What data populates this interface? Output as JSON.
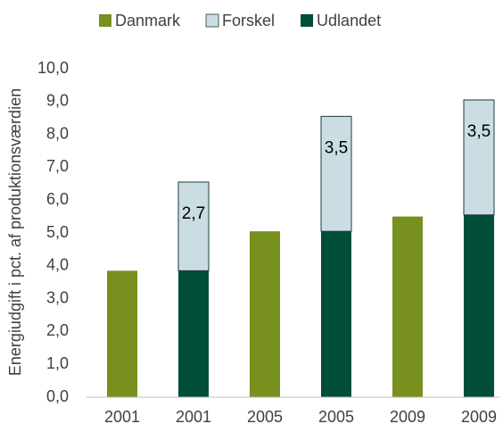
{
  "chart_data": {
    "type": "stacked_bar",
    "y_label": "Energiudgift i pct. af produktionsværdien",
    "categories": [
      "2001",
      "2001",
      "2005",
      "2005",
      "2009",
      "2009"
    ],
    "series": [
      {
        "name": "Danmark",
        "color": "#77901e",
        "values": [
          3.85,
          null,
          5.05,
          null,
          5.5,
          null
        ]
      },
      {
        "name": "Forskel",
        "color": "#c9dde3",
        "values": [
          null,
          2.7,
          null,
          3.5,
          null,
          3.5
        ],
        "value_labels": [
          null,
          "2,7",
          null,
          "3,5",
          null,
          "3,5"
        ]
      },
      {
        "name": "Udlandet",
        "color": "#004d3a",
        "values": [
          null,
          3.85,
          null,
          5.05,
          null,
          5.55
        ]
      }
    ],
    "ylim": [
      0,
      10
    ],
    "yticks": [
      {
        "value": 0,
        "label": "0,0"
      },
      {
        "value": 1,
        "label": "1,0"
      },
      {
        "value": 2,
        "label": "2,0"
      },
      {
        "value": 3,
        "label": "3,0"
      },
      {
        "value": 4,
        "label": "4,0"
      },
      {
        "value": 5,
        "label": "5,0"
      },
      {
        "value": 6,
        "label": "6,0"
      },
      {
        "value": 7,
        "label": "7,0"
      },
      {
        "value": 8,
        "label": "8,0"
      },
      {
        "value": 9,
        "label": "9,0"
      },
      {
        "value": 10,
        "label": "10,0"
      }
    ],
    "legend": "top"
  }
}
